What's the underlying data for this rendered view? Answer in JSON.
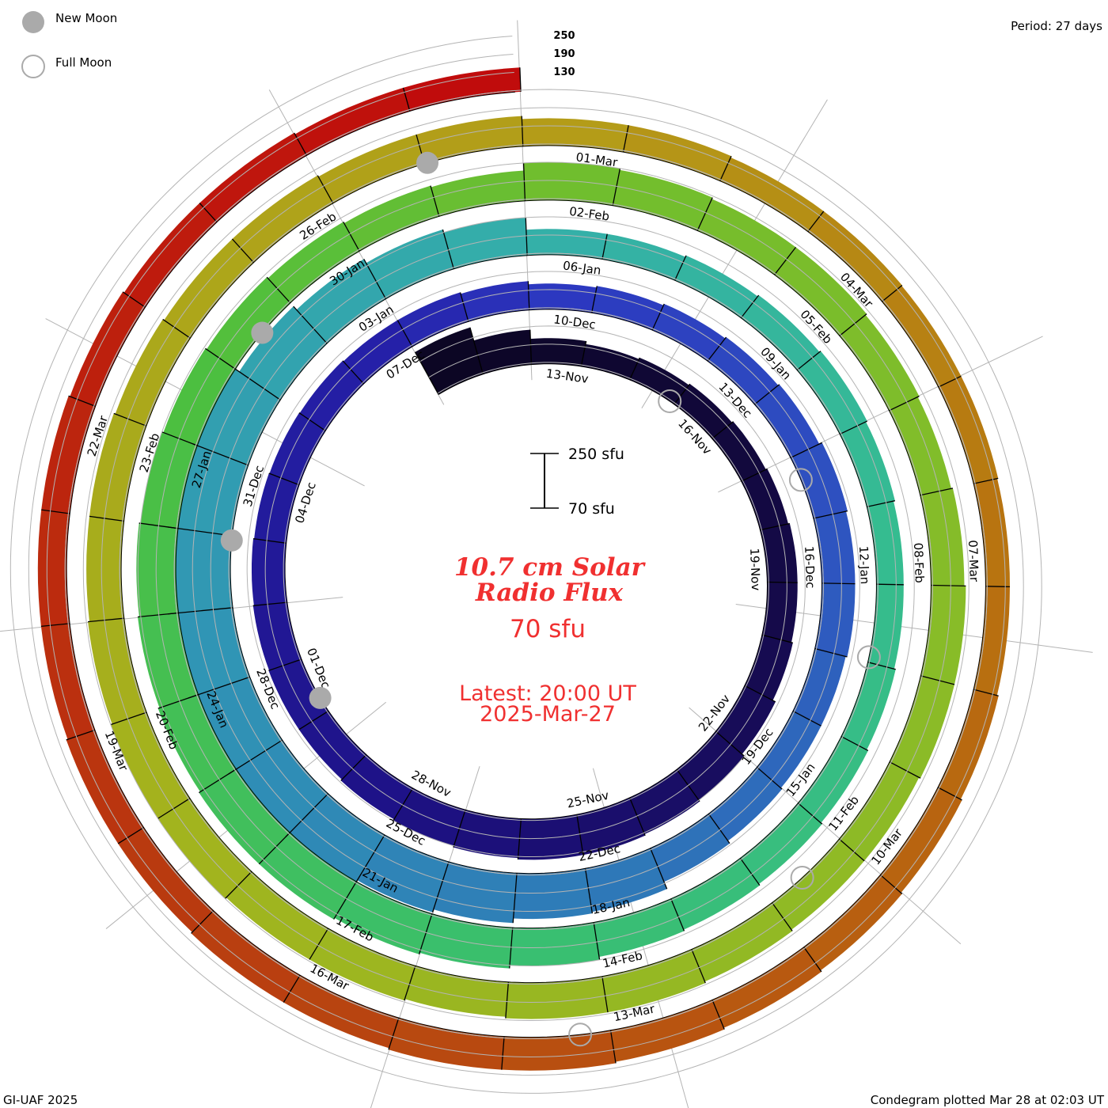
{
  "legend": {
    "new_moon": "New Moon",
    "full_moon": "Full Moon"
  },
  "period_label": "Period: 27 days",
  "footer_left": "GI-UAF 2025",
  "footer_right": "Condegram plotted Mar 28 at 02:03 UT",
  "level_labels": [
    "250",
    "190",
    "130"
  ],
  "scale_bar": {
    "top": "250 sfu",
    "bottom": "70 sfu"
  },
  "center": {
    "title_line1": "10.7 cm Solar",
    "title_line2": "Radio Flux",
    "baseline": "70 sfu",
    "latest_line1": "Latest: 20:00 UT",
    "latest_line2": "2025-Mar-27"
  },
  "chart_data": {
    "type": "condegram-spiral",
    "title": "10.7 cm Solar Radio Flux",
    "units": "sfu",
    "period_days": 27,
    "baseline_sfu": 70,
    "grid_levels": [
      130,
      190,
      250
    ],
    "start_date": "2024-11-11",
    "end_date": "2025-03-27",
    "daily_flux": [
      225,
      180,
      150,
      140,
      145,
      150,
      155,
      160,
      165,
      165,
      170,
      180,
      190,
      195,
      200,
      200,
      195,
      190,
      185,
      180,
      180,
      178,
      175,
      172,
      170,
      168,
      165,
      165,
      160,
      150,
      155,
      160,
      165,
      170,
      180,
      175,
      175,
      170,
      170,
      175,
      185,
      210,
      215,
      230,
      240,
      255,
      265,
      275,
      280,
      280,
      260,
      245,
      230,
      215,
      200,
      190,
      150,
      150,
      155,
      160,
      165,
      160,
      155,
      155,
      160,
      165,
      170,
      175,
      180,
      190,
      200,
      205,
      210,
      210,
      205,
      200,
      195,
      190,
      185,
      180,
      175,
      170,
      165,
      190,
      185,
      180,
      180,
      175,
      170,
      175,
      180,
      180,
      175,
      175,
      180,
      185,
      185,
      180,
      185,
      185,
      190,
      190,
      185,
      180,
      180,
      175,
      170,
      170,
      165,
      165,
      155,
      155,
      150,
      150,
      148,
      148,
      145,
      145,
      150,
      155,
      160,
      165,
      170,
      175,
      175,
      170,
      170,
      165,
      165,
      160,
      160,
      160,
      155,
      150,
      150,
      145,
      145
    ],
    "date_labels": [
      "13-Nov",
      "16-Nov",
      "19-Nov",
      "22-Nov",
      "25-Nov",
      "28-Nov",
      "01-Dec",
      "04-Dec",
      "07-Dec",
      "10-Dec",
      "13-Dec",
      "16-Dec",
      "19-Dec",
      "22-Dec",
      "25-Dec",
      "28-Dec",
      "31-Dec",
      "03-Jan",
      "06-Jan",
      "09-Jan",
      "12-Jan",
      "15-Jan",
      "18-Jan",
      "21-Jan",
      "24-Jan",
      "27-Jan",
      "30-Jan",
      "02-Feb",
      "05-Feb",
      "08-Feb",
      "11-Feb",
      "14-Feb",
      "17-Feb",
      "20-Feb",
      "23-Feb",
      "26-Feb",
      "01-Mar",
      "04-Mar",
      "07-Mar",
      "10-Mar",
      "13-Mar",
      "16-Mar",
      "19-Mar",
      "22-Mar"
    ],
    "new_moons": [
      "2024-12-01T06:21Z",
      "2024-12-30T22:27Z",
      "2025-01-29T12:36Z",
      "2025-02-28T00:45Z"
    ],
    "full_moons": [
      "2024-11-15T21:28Z",
      "2024-12-15T09:02Z",
      "2025-01-13T22:27Z",
      "2025-02-12T13:53Z",
      "2025-03-14T06:55Z"
    ],
    "colors": {
      "moon": "#aaaaaa",
      "grid": "#b4b4b4",
      "text_red": "#f03030",
      "ramp": [
        {
          "day": 0,
          "color": "#0c0624"
        },
        {
          "day": 9,
          "color": "#150a4a"
        },
        {
          "day": 18,
          "color": "#1e1288"
        },
        {
          "day": 26,
          "color": "#2520a8"
        },
        {
          "day": 29,
          "color": "#2c38c0"
        },
        {
          "day": 35,
          "color": "#2e55c0"
        },
        {
          "day": 41,
          "color": "#2e78b8"
        },
        {
          "day": 48,
          "color": "#3095b5"
        },
        {
          "day": 56,
          "color": "#34b0a8"
        },
        {
          "day": 62,
          "color": "#35bc90"
        },
        {
          "day": 70,
          "color": "#3abf6c"
        },
        {
          "day": 78,
          "color": "#4cbf40"
        },
        {
          "day": 83,
          "color": "#70be2e"
        },
        {
          "day": 90,
          "color": "#88bc28"
        },
        {
          "day": 100,
          "color": "#a2b41e"
        },
        {
          "day": 110,
          "color": "#b49c18"
        },
        {
          "day": 116,
          "color": "#b87410"
        },
        {
          "day": 125,
          "color": "#b84410"
        },
        {
          "day": 136,
          "color": "#c00c0c"
        }
      ]
    }
  }
}
